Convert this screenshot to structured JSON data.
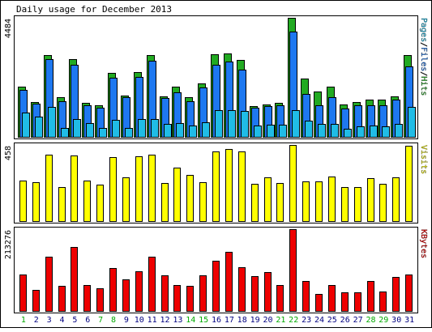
{
  "chart_data": {
    "type": "bar",
    "title": "Daily usage for December 2013",
    "categories": [
      "1",
      "2",
      "3",
      "4",
      "5",
      "6",
      "7",
      "8",
      "9",
      "10",
      "11",
      "12",
      "13",
      "14",
      "15",
      "16",
      "17",
      "18",
      "19",
      "20",
      "21",
      "22",
      "23",
      "24",
      "25",
      "26",
      "27",
      "28",
      "29",
      "30",
      "31"
    ],
    "weekend_days": [
      "1",
      "7",
      "8",
      "14",
      "15",
      "21",
      "22",
      "28",
      "29"
    ],
    "colors": {
      "hits": "#22aa22",
      "files": "#1e78f0",
      "pages": "#20bce6",
      "visits": "#ffff00",
      "kbytes": "#ee0000",
      "weekday_label": "#000080",
      "weekend_label": "#00aa00"
    },
    "panels": [
      {
        "id": "usage",
        "max_label": "4484",
        "ymax": 4484,
        "legend": [
          {
            "text": "Pages",
            "color": "#20bce6"
          },
          {
            "text": "/",
            "color": "#000000"
          },
          {
            "text": "Files",
            "color": "#1e78f0"
          },
          {
            "text": "/",
            "color": "#000000"
          },
          {
            "text": "Hits",
            "color": "#22aa22"
          }
        ],
        "series": [
          {
            "name": "Hits",
            "color": "#22aa22",
            "values": [
              1890,
              1300,
              3070,
              1480,
              2930,
              1270,
              1180,
              2420,
              1570,
              2440,
              3090,
              1540,
              1880,
              1490,
              2010,
              3110,
              3150,
              2900,
              1150,
              1230,
              1280,
              4470,
              2200,
              1720,
              1900,
              1230,
              1320,
              1400,
              1390,
              1530,
              3070
            ]
          },
          {
            "name": "Files",
            "color": "#1e78f0",
            "values": [
              1760,
              1250,
              2920,
              1340,
              2710,
              1200,
              1090,
              2230,
              1490,
              2270,
              2880,
              1470,
              1690,
              1340,
              1850,
              2720,
              2840,
              2520,
              1110,
              1150,
              1180,
              3960,
              1630,
              1200,
              1500,
              1080,
              1180,
              1200,
              1200,
              1390,
              2640
            ]
          },
          {
            "name": "Pages",
            "color": "#20bce6",
            "values": [
              900,
              760,
              1120,
              340,
              660,
              510,
              340,
              650,
              350,
              680,
              660,
              500,
              530,
              420,
              550,
              1010,
              1010,
              990,
              430,
              470,
              460,
              1000,
              600,
              490,
              500,
              300,
              400,
              430,
              400,
              480,
              1120
            ]
          }
        ]
      },
      {
        "id": "visits",
        "max_label": "458",
        "ymax": 458,
        "legend": [
          {
            "text": "Visits",
            "color": "#ffff00"
          }
        ],
        "series": [
          {
            "name": "Visits",
            "color": "#ffff00",
            "values": [
              244,
              233,
              401,
              207,
              395,
              245,
              217,
              385,
              263,
              388,
              400,
              230,
              322,
              280,
              232,
              421,
              434,
              421,
              225,
              264,
              231,
              458,
              238,
              241,
              267,
              207,
              207,
              256,
              225,
              265,
              454
            ]
          }
        ]
      },
      {
        "id": "kbytes",
        "max_label": "213276",
        "ymax": 213276,
        "legend": [
          {
            "text": "KBytes",
            "color": "#ee0000"
          }
        ],
        "series": [
          {
            "name": "KBytes",
            "color": "#ee0000",
            "values": [
              94000,
              55000,
              142000,
              65000,
              166000,
              68000,
              60000,
              112000,
              82000,
              104000,
              142000,
              92000,
              68000,
              65000,
              92000,
              131000,
              154000,
              115000,
              91000,
              101000,
              68000,
              213276,
              78000,
              45000,
              68000,
              49000,
              49000,
              78000,
              51000,
              89000,
              96000
            ]
          }
        ]
      }
    ]
  }
}
